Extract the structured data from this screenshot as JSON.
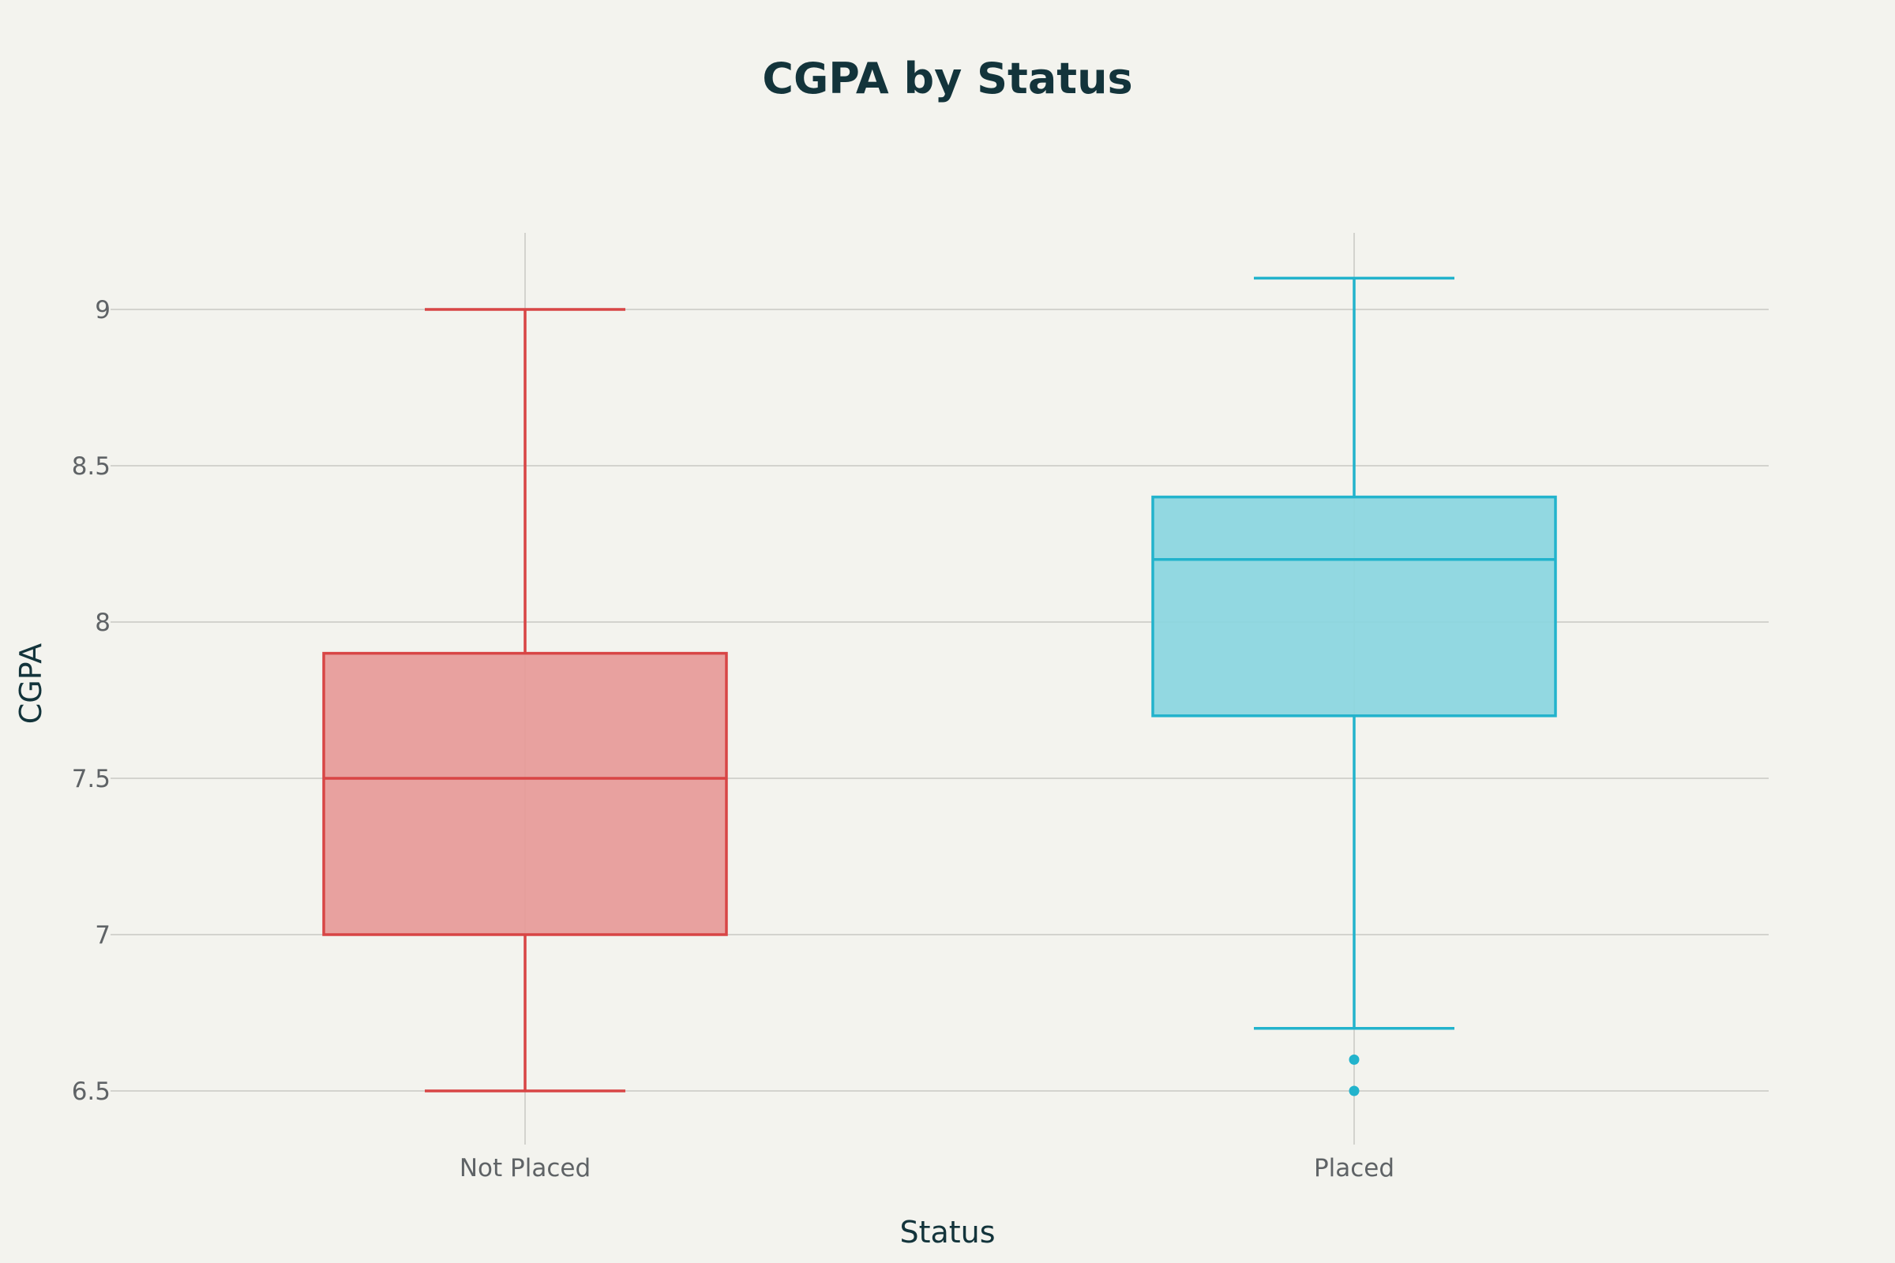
{
  "chart_data": {
    "type": "box",
    "title": "CGPA by Status",
    "xlabel": "Status",
    "ylabel": "CGPA",
    "categories": [
      "Not Placed",
      "Placed"
    ],
    "ylim": [
      6.33,
      9.25
    ],
    "yticks": [
      6.5,
      7,
      7.5,
      8,
      8.5,
      9
    ],
    "ytick_labels": [
      "6.5",
      "7",
      "7.5",
      "8",
      "8.5",
      "9"
    ],
    "grid": true,
    "boxes": [
      {
        "category": "Not Placed",
        "min": 6.5,
        "q1": 7.0,
        "median": 7.5,
        "q3": 7.9,
        "max": 9.0,
        "outliers": [],
        "color": "#d84545",
        "fill": "#e79a98"
      },
      {
        "category": "Placed",
        "min": 6.7,
        "q1": 7.7,
        "median": 8.2,
        "q3": 8.4,
        "max": 9.1,
        "outliers": [
          6.6,
          6.5
        ],
        "color": "#22b3cc",
        "fill": "#8ad6df"
      }
    ]
  }
}
